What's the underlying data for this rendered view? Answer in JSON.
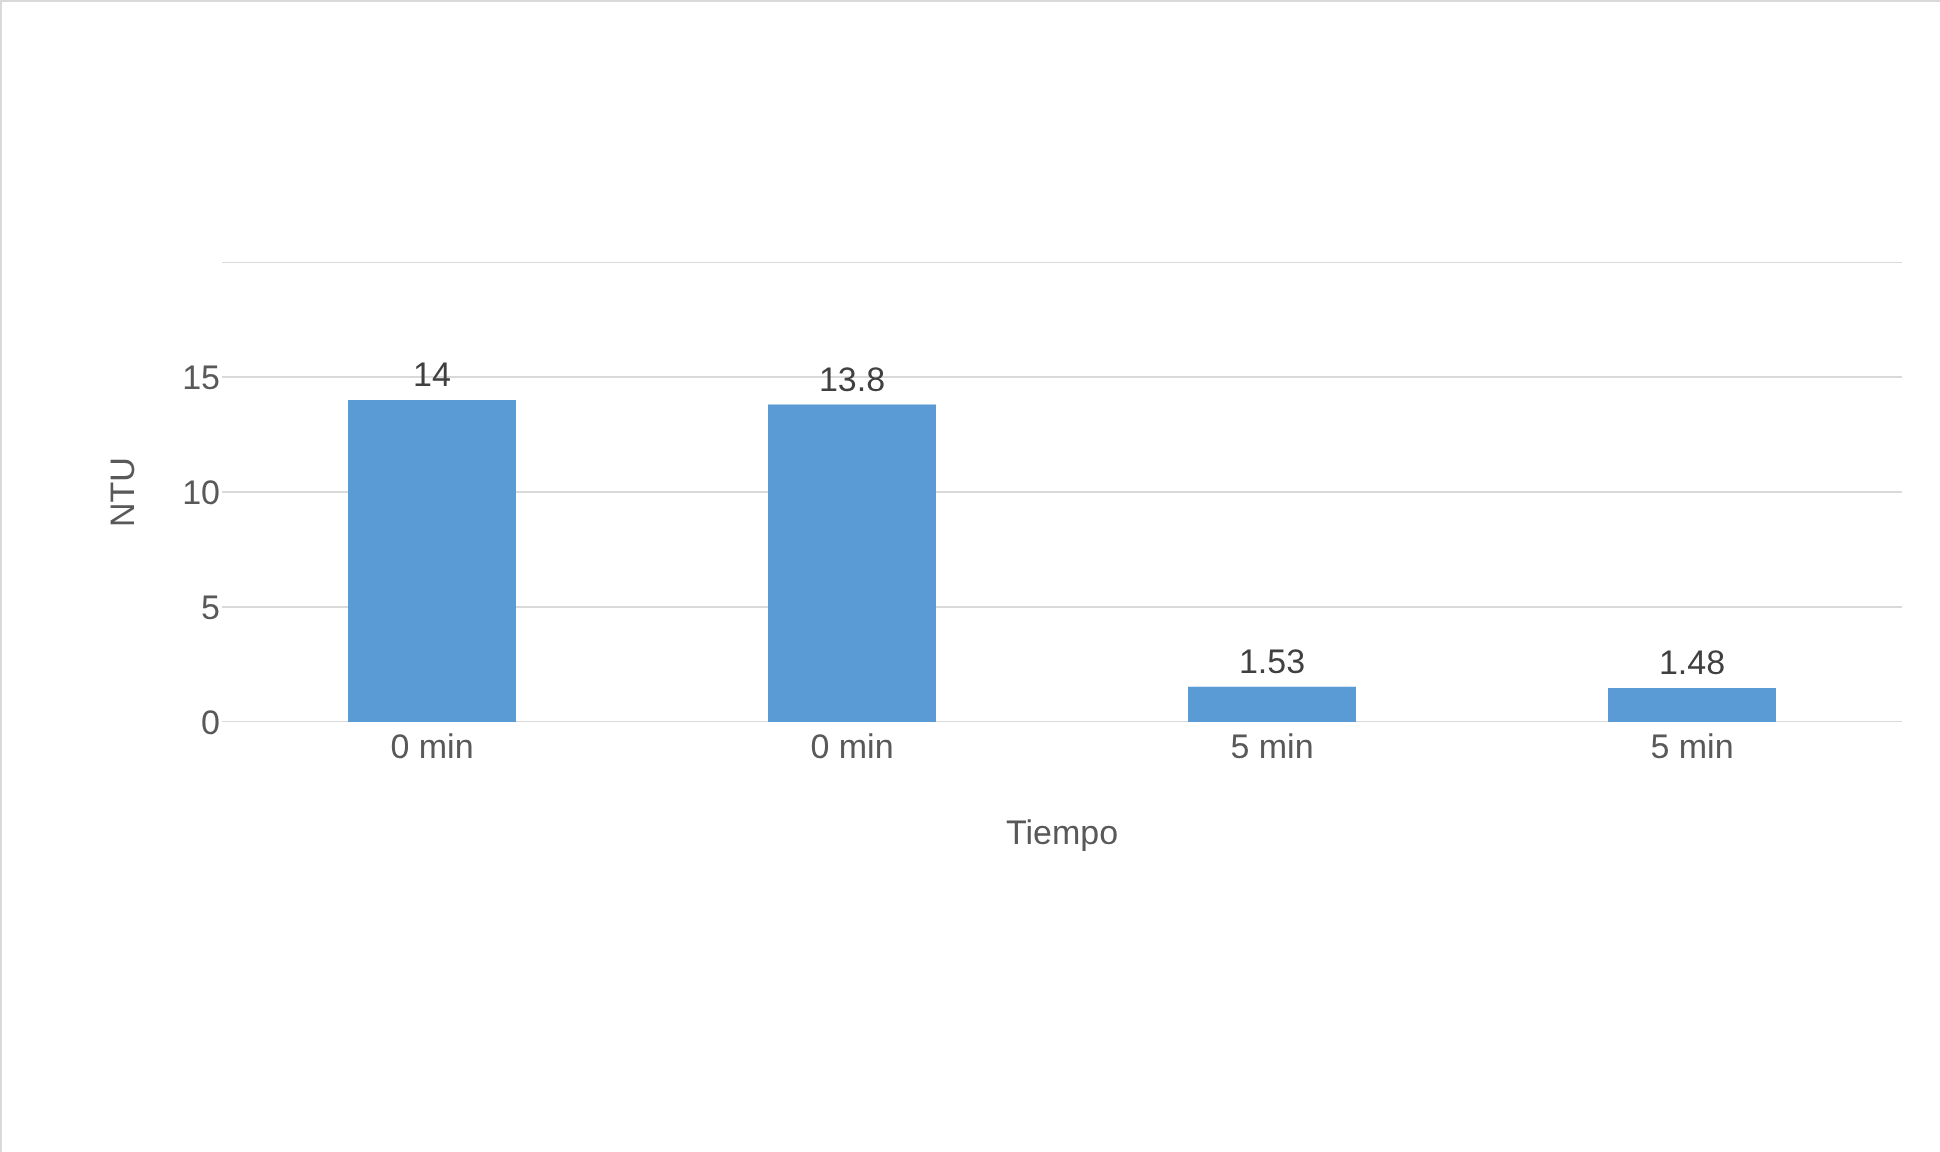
{
  "chart_data": {
    "type": "bar",
    "xlabel": "Tiempo",
    "ylabel": "NTU",
    "categories": [
      "0 min",
      "0 min",
      "5 min",
      "5 min"
    ],
    "values": [
      14,
      13.8,
      1.53,
      1.48
    ],
    "color": "#5b9bd5",
    "ylim": [
      0,
      20
    ],
    "yticks": [
      0,
      5,
      10,
      15,
      {
        "value": 20,
        "label": null
      }
    ],
    "grid": "y",
    "data_labels": true
  }
}
